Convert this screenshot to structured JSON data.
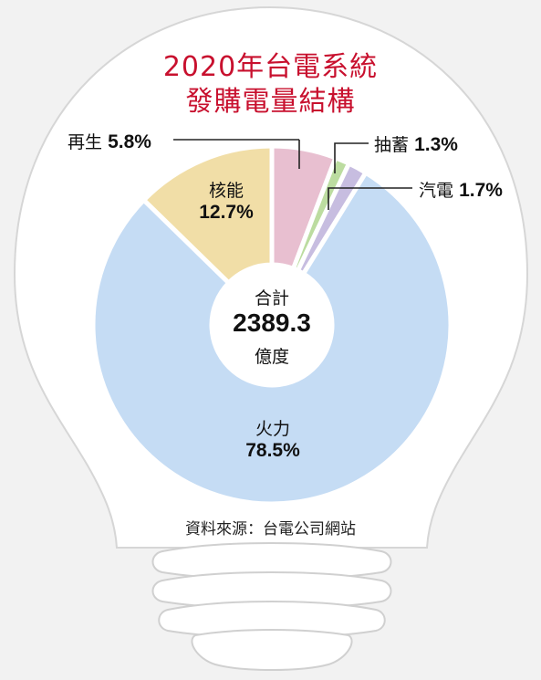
{
  "chart_data": {
    "type": "pie",
    "title_line1": "2020年台電系統",
    "title_line2": "發購電量結構",
    "center": {
      "label": "合計",
      "value": "2389.3",
      "unit": "億度"
    },
    "slices": [
      {
        "name": "再生",
        "value": 5.8,
        "display": "5.8%",
        "color": "#e8bfd0"
      },
      {
        "name": "抽蓄",
        "value": 1.3,
        "display": "1.3%",
        "color": "#bcdca0"
      },
      {
        "name": "汽電",
        "value": 1.7,
        "display": "1.7%",
        "color": "#c7bde0"
      },
      {
        "name": "火力",
        "value": 78.5,
        "display": "78.5%",
        "color": "#c5dcf4"
      },
      {
        "name": "核能",
        "value": 12.7,
        "display": "12.7%",
        "color": "#f1dea7"
      }
    ],
    "legend": "none"
  },
  "source": "資料來源：台電公司網站"
}
